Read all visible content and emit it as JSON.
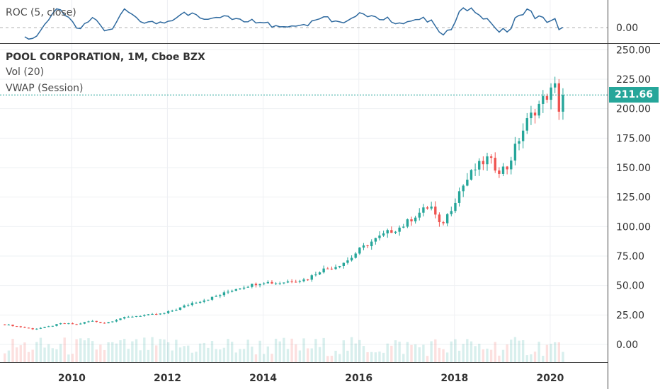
{
  "colors": {
    "up": "#26a69a",
    "down": "#ef5350",
    "roc": "#2f6a9f",
    "grid": "#eef0f3",
    "axis_text": "#333333"
  },
  "roc_pane": {
    "label": "ROC (5, close)",
    "tick": "0.00"
  },
  "main_pane": {
    "title": "POOL CORPORATION, 1M, Cboe BZX",
    "vol_label": "Vol (20)",
    "vwap_label": "VWAP (Session)",
    "last_price": "211.66"
  },
  "chart_data": {
    "type": "candlestick",
    "title": "POOL CORPORATION, 1M, Cboe BZX",
    "x_ticks": [
      "2010",
      "2012",
      "2014",
      "2016",
      "2018",
      "2020"
    ],
    "y_ticks": [
      "250.00",
      "225.00",
      "200.00",
      "175.00",
      "150.00",
      "125.00",
      "100.00",
      "75.00",
      "50.00",
      "25.00",
      "0.00"
    ],
    "ylim": [
      -15,
      255
    ],
    "xlim": [
      2008.5,
      2021.2
    ],
    "grid": true,
    "series": [
      {
        "name": "POOL",
        "points": [
          [
            2008.6,
            17
          ],
          [
            2008.9,
            15
          ],
          [
            2009.2,
            13
          ],
          [
            2009.5,
            15
          ],
          [
            2009.8,
            18
          ],
          [
            2010.1,
            17
          ],
          [
            2010.4,
            20
          ],
          [
            2010.7,
            18
          ],
          [
            2011.0,
            22
          ],
          [
            2011.3,
            24
          ],
          [
            2011.6,
            25
          ],
          [
            2011.9,
            26
          ],
          [
            2012.2,
            30
          ],
          [
            2012.5,
            35
          ],
          [
            2012.8,
            38
          ],
          [
            2013.1,
            42
          ],
          [
            2013.4,
            47
          ],
          [
            2013.7,
            50
          ],
          [
            2014.0,
            53
          ],
          [
            2014.3,
            52
          ],
          [
            2014.6,
            54
          ],
          [
            2014.9,
            55
          ],
          [
            2015.2,
            63
          ],
          [
            2015.5,
            66
          ],
          [
            2015.8,
            72
          ],
          [
            2016.0,
            80
          ],
          [
            2016.3,
            88
          ],
          [
            2016.6,
            95
          ],
          [
            2016.9,
            100
          ],
          [
            2017.2,
            110
          ],
          [
            2017.5,
            118
          ],
          [
            2017.7,
            100
          ],
          [
            2017.9,
            113
          ],
          [
            2018.1,
            130
          ],
          [
            2018.4,
            148
          ],
          [
            2018.7,
            158
          ],
          [
            2018.9,
            148
          ],
          [
            2019.1,
            150
          ],
          [
            2019.3,
            170
          ],
          [
            2019.5,
            188
          ],
          [
            2019.7,
            200
          ],
          [
            2019.9,
            210
          ],
          [
            2020.1,
            218
          ],
          [
            2020.2,
            197
          ],
          [
            2020.3,
            211.66
          ]
        ]
      }
    ]
  }
}
